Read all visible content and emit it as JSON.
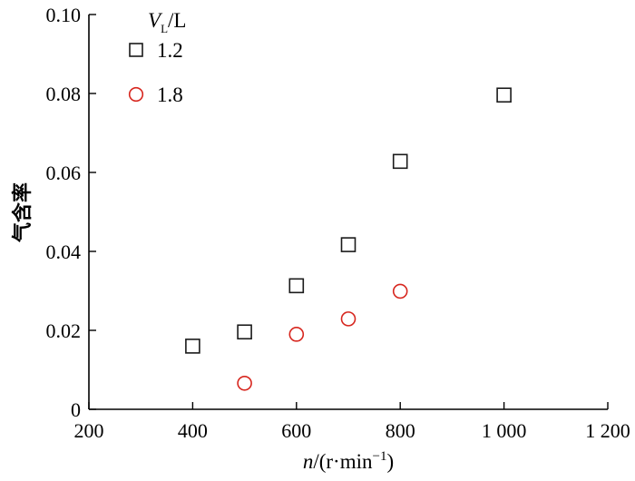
{
  "chart_data": {
    "type": "scatter",
    "xlabel": {
      "var": "n",
      "unit": "/(r·min",
      "sup": "−1",
      "close": ")"
    },
    "ylabel": "气含率",
    "xlim": [
      200,
      1200
    ],
    "ylim": [
      0,
      0.1
    ],
    "x_ticks": [
      200,
      400,
      600,
      800,
      1000,
      1200
    ],
    "x_tick_labels": [
      "200",
      "400",
      "600",
      "800",
      "1 000",
      "1 200"
    ],
    "y_ticks": [
      0,
      0.02,
      0.04,
      0.06,
      0.08,
      0.1
    ],
    "y_tick_labels": [
      "0",
      "0.02",
      "0.04",
      "0.06",
      "0.08",
      "0.10"
    ],
    "legend": {
      "title": {
        "var": "V",
        "sub": "L",
        "unit": "/L"
      },
      "position": "top-left"
    },
    "series": [
      {
        "name": "1.2",
        "marker": "square",
        "color": "#1a1a1a",
        "x": [
          400,
          500,
          600,
          700,
          800,
          1000
        ],
        "y": [
          0.016,
          0.0196,
          0.0313,
          0.0417,
          0.0628,
          0.0796
        ]
      },
      {
        "name": "1.8",
        "marker": "circle",
        "color": "#d7261e",
        "x": [
          500,
          600,
          700,
          800
        ],
        "y": [
          0.0066,
          0.019,
          0.0229,
          0.0299
        ]
      }
    ]
  }
}
